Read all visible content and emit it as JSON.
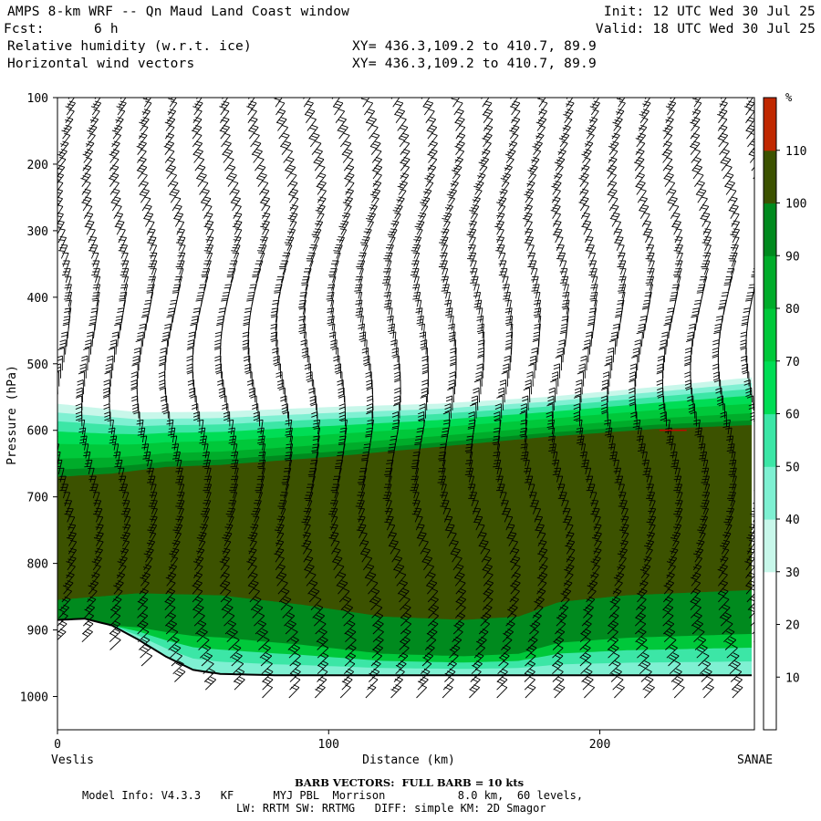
{
  "header": {
    "title": "AMPS 8-km WRF -- Qn Maud Land Coast window",
    "init": "Init: 12 UTC Wed 30 Jul 25",
    "fcst_label": "Fcst:",
    "fcst_value": "6 h",
    "valid": "Valid: 18 UTC Wed 30 Jul 25",
    "field1": "Relative humidity (w.r.t. ice)",
    "xy1": "XY= 436.3,109.2 to 410.7, 89.9",
    "field2": "Horizontal wind vectors",
    "xy2": "XY= 436.3,109.2 to 410.7, 89.9"
  },
  "footer": {
    "barb_note": "BARB VECTORS:  FULL BARB = 10 kts",
    "model_info": "Model Info: V4.3.3   KF      MYJ PBL  Morrison           8.0 km,  60 levels,",
    "physics": "LW: RRTM SW: RRTMG   DIFF: simple KM: 2D Smagor"
  },
  "chart_data": {
    "type": "heatmap",
    "title": "Relative humidity (w.r.t. ice)",
    "overlay": "Horizontal wind vectors (barbs)",
    "xlabel": "Distance (km)",
    "ylabel": "Pressure (hPa)",
    "x_start_label": "Veslis",
    "x_end_label": "SANAE",
    "xlim": [
      0,
      257
    ],
    "ylim": [
      1050,
      100
    ],
    "x_ticks": [
      0,
      100,
      200
    ],
    "y_ticks": [
      100,
      200,
      300,
      400,
      500,
      600,
      700,
      800,
      900,
      1000
    ],
    "colorbar": {
      "unit": "%",
      "levels": [
        10,
        20,
        30,
        40,
        50,
        60,
        70,
        80,
        90,
        100,
        110
      ],
      "colors": [
        "#ffffff",
        "#ffffff",
        "#ffffff",
        "#c8f7ea",
        "#7ff0d2",
        "#3ce6a6",
        "#00dd55",
        "#00c83a",
        "#00ac2a",
        "#008a1e",
        "#3c5200",
        "#c02800"
      ]
    },
    "terrain": [
      [
        0,
        885
      ],
      [
        10,
        883
      ],
      [
        20,
        893
      ],
      [
        30,
        915
      ],
      [
        40,
        940
      ],
      [
        50,
        960
      ],
      [
        60,
        966
      ],
      [
        80,
        968
      ],
      [
        120,
        968
      ],
      [
        257,
        968
      ]
    ],
    "moist_layer_top": [
      [
        0,
        560
      ],
      [
        30,
        573
      ],
      [
        60,
        572
      ],
      [
        100,
        565
      ],
      [
        140,
        560
      ],
      [
        180,
        550
      ],
      [
        220,
        535
      ],
      [
        257,
        520
      ]
    ],
    "saturated_layer_top": [
      [
        0,
        670
      ],
      [
        20,
        665
      ],
      [
        40,
        655
      ],
      [
        60,
        652
      ],
      [
        100,
        640
      ],
      [
        140,
        625
      ],
      [
        180,
        610
      ],
      [
        220,
        598
      ],
      [
        257,
        592
      ]
    ],
    "saturated_layer_bottom": [
      [
        0,
        855
      ],
      [
        30,
        845
      ],
      [
        60,
        848
      ],
      [
        90,
        862
      ],
      [
        120,
        880
      ],
      [
        150,
        885
      ],
      [
        170,
        880
      ],
      [
        185,
        858
      ],
      [
        210,
        848
      ],
      [
        257,
        840
      ]
    ],
    "barb_note": "BARB VECTORS:  FULL BARB = 10 kts"
  }
}
